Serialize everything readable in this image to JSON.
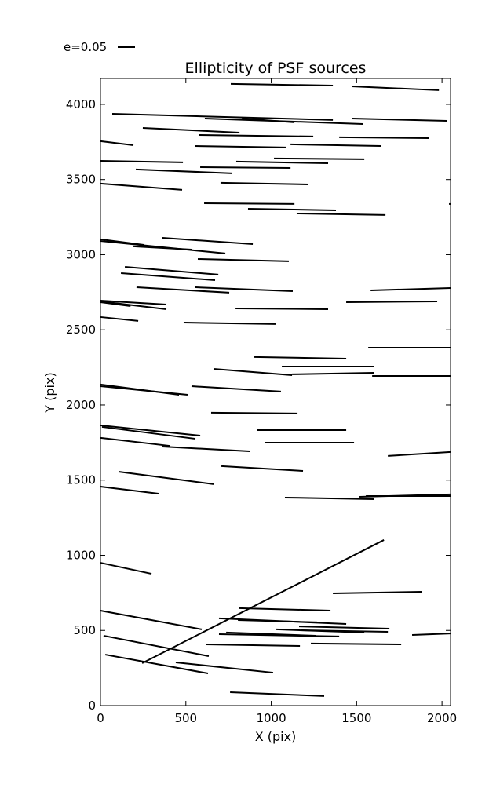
{
  "chart_data": {
    "type": "segments",
    "title": "Ellipticity of PSF sources",
    "x_label": "X (pix)",
    "y_label": "Y (pix)",
    "legend_label": "e=0.05",
    "color": "#000000",
    "xlim": [
      0,
      2050
    ],
    "ylim": [
      0,
      4172
    ],
    "xticks": [
      0,
      500,
      1000,
      1500,
      2000
    ],
    "yticks": [
      0,
      500,
      1000,
      1500,
      2000,
      2500,
      3000,
      3500,
      4000
    ],
    "segments": [
      [
        763,
        4136,
        1361,
        4125
      ],
      [
        1471,
        4120,
        1982,
        4094
      ],
      [
        69,
        3937,
        1361,
        3896
      ],
      [
        611,
        3906,
        1536,
        3869
      ],
      [
        828,
        3906,
        1136,
        3880
      ],
      [
        1471,
        3906,
        2028,
        3890
      ],
      [
        248,
        3843,
        814,
        3812
      ],
      [
        579,
        3796,
        1246,
        3786
      ],
      [
        1398,
        3781,
        1922,
        3775
      ],
      [
        0,
        3755,
        193,
        3728
      ],
      [
        552,
        3723,
        1085,
        3713
      ],
      [
        1113,
        3734,
        1641,
        3723
      ],
      [
        1016,
        3640,
        1545,
        3635
      ],
      [
        0,
        3624,
        483,
        3614
      ],
      [
        795,
        3619,
        1333,
        3608
      ],
      [
        584,
        3582,
        1113,
        3577
      ],
      [
        207,
        3567,
        772,
        3541
      ],
      [
        0,
        3473,
        478,
        3431
      ],
      [
        703,
        3478,
        1218,
        3467
      ],
      [
        607,
        3342,
        1136,
        3337
      ],
      [
        864,
        3305,
        1379,
        3295
      ],
      [
        1149,
        3274,
        1669,
        3264
      ],
      [
        2041,
        3337,
        2050,
        3337
      ],
      [
        0,
        3102,
        253,
        3065
      ],
      [
        0,
        3091,
        731,
        3008
      ],
      [
        193,
        3055,
        533,
        3034
      ],
      [
        363,
        3112,
        892,
        3070
      ],
      [
        570,
        2971,
        1103,
        2956
      ],
      [
        143,
        2919,
        690,
        2867
      ],
      [
        120,
        2877,
        671,
        2830
      ],
      [
        211,
        2783,
        754,
        2747
      ],
      [
        556,
        2783,
        1126,
        2757
      ],
      [
        1582,
        2762,
        2050,
        2778
      ],
      [
        0,
        2694,
        386,
        2668
      ],
      [
        0,
        2689,
        386,
        2637
      ],
      [
        0,
        2684,
        176,
        2658
      ],
      [
        791,
        2642,
        1333,
        2637
      ],
      [
        1439,
        2684,
        1972,
        2689
      ],
      [
        0,
        2585,
        221,
        2559
      ],
      [
        487,
        2548,
        1025,
        2538
      ],
      [
        901,
        2319,
        1439,
        2308
      ],
      [
        1062,
        2256,
        1600,
        2256
      ],
      [
        662,
        2240,
        1122,
        2198
      ],
      [
        1122,
        2204,
        1600,
        2214
      ],
      [
        1591,
        2193,
        2050,
        2193
      ],
      [
        1568,
        2381,
        2050,
        2381
      ],
      [
        0,
        2136,
        460,
        2068
      ],
      [
        0,
        2125,
        510,
        2068
      ],
      [
        533,
        2125,
        1057,
        2089
      ],
      [
        648,
        1948,
        1154,
        1943
      ],
      [
        0,
        1864,
        584,
        1796
      ],
      [
        9,
        1854,
        556,
        1775
      ],
      [
        915,
        1833,
        1439,
        1833
      ],
      [
        961,
        1749,
        1485,
        1749
      ],
      [
        0,
        1781,
        405,
        1728
      ],
      [
        363,
        1723,
        874,
        1692
      ],
      [
        1683,
        1661,
        2050,
        1687
      ],
      [
        708,
        1593,
        1186,
        1561
      ],
      [
        106,
        1556,
        662,
        1473
      ],
      [
        0,
        1457,
        340,
        1410
      ],
      [
        1080,
        1384,
        1600,
        1373
      ],
      [
        1517,
        1389,
        2050,
        1405
      ],
      [
        1554,
        1394,
        2050,
        1394
      ],
      [
        244,
        282,
        1660,
        1102
      ],
      [
        0,
        950,
        299,
        877
      ],
      [
        1361,
        747,
        1880,
        757
      ],
      [
        0,
        632,
        593,
        507
      ],
      [
        809,
        648,
        1347,
        632
      ],
      [
        694,
        580,
        1439,
        543
      ],
      [
        805,
        569,
        1269,
        554
      ],
      [
        1163,
        527,
        1692,
        512
      ],
      [
        1030,
        507,
        1545,
        486
      ],
      [
        736,
        486,
        1260,
        465
      ],
      [
        694,
        475,
        1398,
        460
      ],
      [
        1177,
        501,
        1683,
        491
      ],
      [
        1825,
        470,
        2050,
        480
      ],
      [
        18,
        465,
        634,
        329
      ],
      [
        616,
        407,
        1168,
        397
      ],
      [
        1232,
        413,
        1761,
        407
      ],
      [
        28,
        339,
        630,
        214
      ],
      [
        441,
        287,
        1011,
        219
      ],
      [
        759,
        89,
        1310,
        63
      ]
    ]
  }
}
